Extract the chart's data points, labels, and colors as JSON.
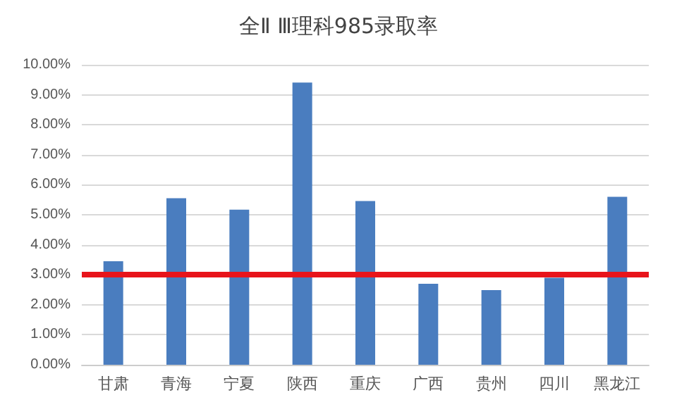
{
  "chart_data": {
    "type": "bar",
    "title": "全Ⅱ Ⅲ理科985录取率",
    "categories": [
      "甘肃",
      "青海",
      "宁夏",
      "陕西",
      "重庆",
      "广西",
      "贵州",
      "四川",
      "黑龙江"
    ],
    "values": [
      3.45,
      5.55,
      5.17,
      9.41,
      5.46,
      2.7,
      2.49,
      2.9,
      5.6
    ],
    "color": "#4a7dbf",
    "ylim": [
      0,
      10
    ],
    "yticks": [
      {
        "value": 0,
        "label": "0.00%"
      },
      {
        "value": 1,
        "label": "1.00%"
      },
      {
        "value": 2,
        "label": "2.00%"
      },
      {
        "value": 3,
        "label": "3.00%"
      },
      {
        "value": 4,
        "label": "4.00%"
      },
      {
        "value": 5,
        "label": "5.00%"
      },
      {
        "value": 6,
        "label": "6.00%"
      },
      {
        "value": 7,
        "label": "7.00%"
      },
      {
        "value": 8,
        "label": "8.00%"
      },
      {
        "value": 9,
        "label": "9.00%"
      },
      {
        "value": 10,
        "label": "10.00%"
      }
    ],
    "grid": true,
    "ref_lines": [
      {
        "axis": "y",
        "value": 3.0,
        "color": "#e8141b"
      }
    ]
  }
}
